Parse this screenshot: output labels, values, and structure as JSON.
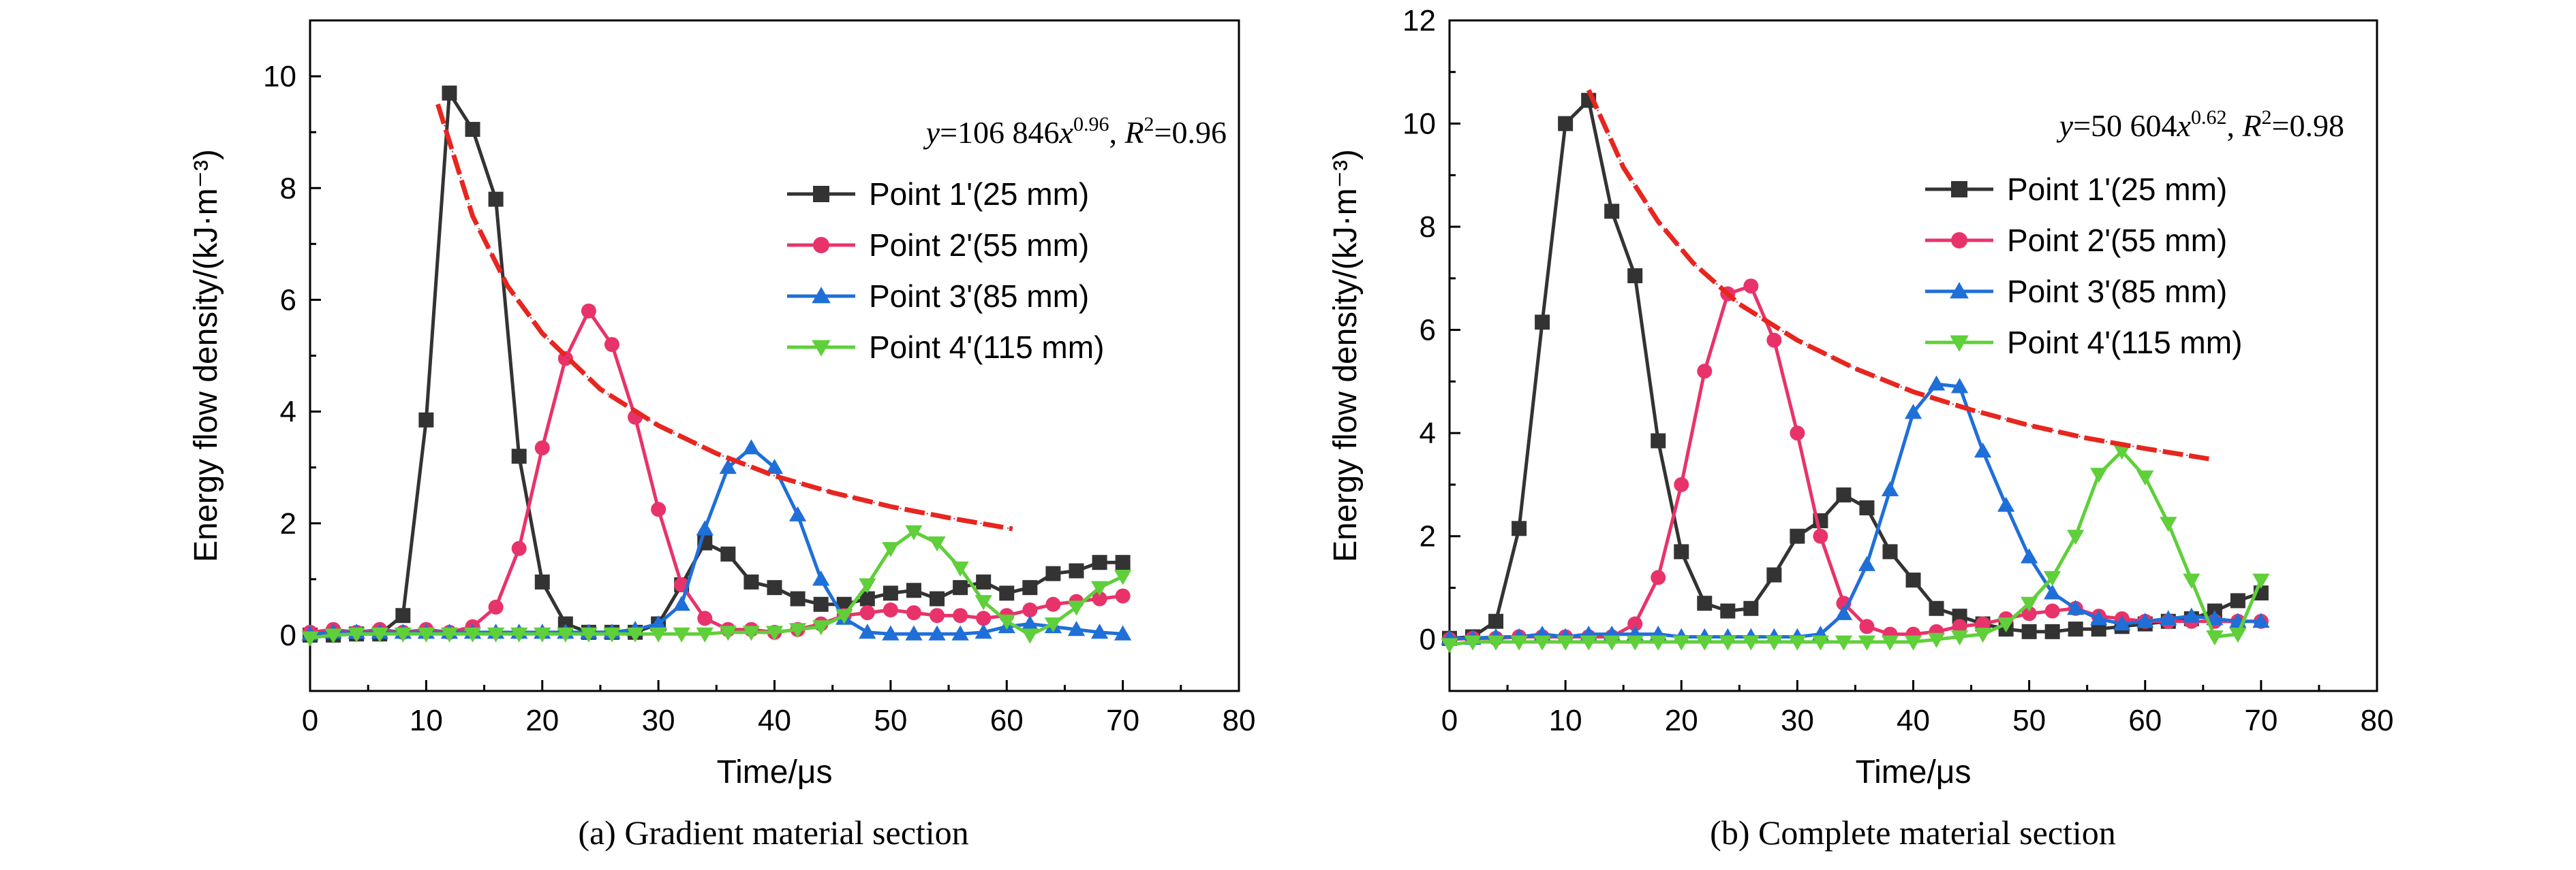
{
  "chart_data": [
    {
      "type": "line",
      "caption": "(a) Gradient material section",
      "xlabel": "Time/μs",
      "ylabel": "Energy flow density/(kJ·m⁻³)",
      "xlim": [
        0,
        80
      ],
      "ylim": [
        -1,
        11
      ],
      "xticks": [
        0,
        10,
        20,
        30,
        40,
        50,
        60,
        70,
        80
      ],
      "yticks": [
        0,
        2,
        4,
        6,
        8,
        10
      ],
      "legend_position": "top-right",
      "fit": {
        "equation": "y=106 846x^0.96, R²=0.96",
        "label_parts": [
          "y",
          "=106 846",
          "x",
          "0.96",
          ", ",
          "R",
          "2",
          "=0.96"
        ],
        "x": [
          11,
          14,
          17,
          20,
          25,
          30,
          35,
          40,
          45,
          50,
          55,
          60.5
        ],
        "y": [
          9.5,
          7.5,
          6.25,
          5.4,
          4.4,
          3.75,
          3.25,
          2.85,
          2.55,
          2.3,
          2.1,
          1.9
        ],
        "color": "#e6261f"
      },
      "series": [
        {
          "name": "Point 1'(25 mm)",
          "color": "#333333",
          "marker": "square",
          "x": [
            0,
            2,
            4,
            6,
            8,
            10,
            12,
            14,
            16,
            18,
            20,
            22,
            24,
            26,
            28,
            30,
            32,
            34,
            36,
            38,
            40,
            42,
            44,
            46,
            48,
            50,
            52,
            54,
            56,
            58,
            60,
            62,
            64,
            66,
            68,
            70
          ],
          "y": [
            0.0,
            0.0,
            0.02,
            0.02,
            0.35,
            3.85,
            9.7,
            9.05,
            7.8,
            3.2,
            0.95,
            0.2,
            0.05,
            0.05,
            0.05,
            0.2,
            0.9,
            1.65,
            1.45,
            0.95,
            0.85,
            0.65,
            0.55,
            0.55,
            0.65,
            0.75,
            0.8,
            0.65,
            0.85,
            0.95,
            0.75,
            0.85,
            1.1,
            1.15,
            1.3,
            1.3
          ]
        },
        {
          "name": "Point 2'(55 mm)",
          "color": "#e8336a",
          "marker": "circle",
          "x": [
            0,
            2,
            4,
            6,
            8,
            10,
            12,
            14,
            16,
            18,
            20,
            22,
            24,
            26,
            28,
            30,
            32,
            34,
            36,
            38,
            40,
            42,
            44,
            46,
            48,
            50,
            52,
            54,
            56,
            58,
            60,
            62,
            64,
            66,
            68,
            70
          ],
          "y": [
            0.05,
            0.1,
            0.05,
            0.1,
            0.05,
            0.1,
            0.05,
            0.15,
            0.5,
            1.55,
            3.35,
            4.95,
            5.8,
            5.2,
            3.9,
            2.25,
            0.9,
            0.3,
            0.1,
            0.1,
            0.05,
            0.1,
            0.2,
            0.35,
            0.4,
            0.45,
            0.4,
            0.35,
            0.35,
            0.3,
            0.35,
            0.45,
            0.55,
            0.6,
            0.65,
            0.7
          ]
        },
        {
          "name": "Point 3'(85 mm)",
          "color": "#1f6fd8",
          "marker": "triangle-up",
          "x": [
            0,
            2,
            4,
            6,
            8,
            10,
            12,
            14,
            16,
            18,
            20,
            22,
            24,
            26,
            28,
            30,
            32,
            34,
            36,
            38,
            40,
            42,
            44,
            46,
            48,
            50,
            52,
            54,
            56,
            58,
            60,
            62,
            64,
            66,
            68,
            70
          ],
          "y": [
            0.02,
            0.05,
            0.05,
            0.05,
            0.05,
            0.05,
            0.05,
            0.05,
            0.05,
            0.05,
            0.05,
            0.05,
            0.05,
            0.05,
            0.1,
            0.2,
            0.55,
            1.9,
            3.0,
            3.35,
            3.0,
            2.15,
            1.0,
            0.3,
            0.05,
            0.02,
            0.02,
            0.02,
            0.02,
            0.05,
            0.15,
            0.2,
            0.15,
            0.1,
            0.05,
            0.02
          ]
        },
        {
          "name": "Point 4'(115 mm)",
          "color": "#5fcf3a",
          "marker": "triangle-down",
          "x": [
            0,
            2,
            4,
            6,
            8,
            10,
            12,
            14,
            16,
            18,
            20,
            22,
            24,
            26,
            28,
            30,
            32,
            34,
            36,
            38,
            40,
            42,
            44,
            46,
            48,
            50,
            52,
            54,
            56,
            58,
            60,
            62,
            64,
            66,
            68,
            70
          ],
          "y": [
            -0.05,
            0.0,
            0.02,
            0.02,
            0.02,
            0.02,
            0.02,
            0.02,
            0.02,
            0.02,
            0.02,
            0.02,
            0.02,
            0.02,
            0.02,
            0.02,
            0.02,
            0.02,
            0.05,
            0.05,
            0.05,
            0.1,
            0.15,
            0.35,
            0.9,
            1.55,
            1.85,
            1.65,
            1.2,
            0.6,
            0.25,
            0.0,
            0.2,
            0.5,
            0.85,
            1.05
          ]
        }
      ]
    },
    {
      "type": "line",
      "caption": "(b) Complete material section",
      "xlabel": "Time/μs",
      "ylabel": "Energy flow density/(kJ·m⁻³)",
      "xlim": [
        0,
        80
      ],
      "ylim": [
        -1,
        12
      ],
      "xticks": [
        0,
        10,
        20,
        30,
        40,
        50,
        60,
        70,
        80
      ],
      "yticks": [
        0,
        2,
        4,
        6,
        8,
        10,
        12
      ],
      "legend_position": "top-right",
      "fit": {
        "equation": "y=50 604x^0.62, R²=0.98",
        "label_parts": [
          "y",
          "=50 604",
          "x",
          "0.62",
          ", ",
          "R",
          "2",
          "=0.98"
        ],
        "x": [
          12,
          15,
          18,
          21,
          25,
          30,
          35,
          40,
          45,
          50,
          55,
          60,
          65.5
        ],
        "y": [
          10.65,
          9.15,
          8.1,
          7.3,
          6.5,
          5.8,
          5.25,
          4.8,
          4.45,
          4.15,
          3.9,
          3.7,
          3.5
        ],
        "color": "#e6261f"
      },
      "series": [
        {
          "name": "Point 1'(25 mm)",
          "color": "#333333",
          "marker": "square",
          "x": [
            0,
            2,
            4,
            6,
            8,
            10,
            12,
            14,
            16,
            18,
            20,
            22,
            24,
            26,
            28,
            30,
            32,
            34,
            36,
            38,
            40,
            42,
            44,
            46,
            48,
            50,
            52,
            54,
            56,
            58,
            60,
            62,
            64,
            66,
            68,
            70
          ],
          "y": [
            0.02,
            0.05,
            0.35,
            2.15,
            6.15,
            10.0,
            10.45,
            8.3,
            7.05,
            3.85,
            1.7,
            0.7,
            0.55,
            0.6,
            1.25,
            2.0,
            2.3,
            2.8,
            2.55,
            1.7,
            1.15,
            0.6,
            0.45,
            0.3,
            0.2,
            0.15,
            0.15,
            0.2,
            0.2,
            0.25,
            0.3,
            0.35,
            0.4,
            0.55,
            0.75,
            0.9
          ]
        },
        {
          "name": "Point 2'(55 mm)",
          "color": "#e8336a",
          "marker": "circle",
          "x": [
            0,
            2,
            4,
            6,
            8,
            10,
            12,
            14,
            16,
            18,
            20,
            22,
            24,
            26,
            28,
            30,
            32,
            34,
            36,
            38,
            40,
            42,
            44,
            46,
            48,
            50,
            52,
            54,
            56,
            58,
            60,
            62,
            64,
            66,
            68,
            70
          ],
          "y": [
            0.0,
            0.02,
            0.02,
            0.05,
            0.05,
            0.05,
            0.05,
            0.05,
            0.3,
            1.2,
            3.0,
            5.2,
            6.7,
            6.85,
            5.8,
            4.0,
            2.0,
            0.7,
            0.25,
            0.1,
            0.1,
            0.15,
            0.25,
            0.3,
            0.4,
            0.5,
            0.55,
            0.6,
            0.45,
            0.4,
            0.35,
            0.35,
            0.35,
            0.35,
            0.35,
            0.35
          ]
        },
        {
          "name": "Point 3'(85 mm)",
          "color": "#1f6fd8",
          "marker": "triangle-up",
          "x": [
            0,
            2,
            4,
            6,
            8,
            10,
            12,
            14,
            16,
            18,
            20,
            22,
            24,
            26,
            28,
            30,
            32,
            34,
            36,
            38,
            40,
            42,
            44,
            46,
            48,
            50,
            52,
            54,
            56,
            58,
            60,
            62,
            64,
            66,
            68,
            70
          ],
          "y": [
            0.02,
            0.02,
            0.05,
            0.05,
            0.1,
            0.05,
            0.1,
            0.1,
            0.1,
            0.1,
            0.05,
            0.05,
            0.05,
            0.05,
            0.05,
            0.05,
            0.1,
            0.5,
            1.45,
            2.9,
            4.4,
            4.95,
            4.9,
            3.65,
            2.6,
            1.6,
            0.9,
            0.6,
            0.4,
            0.3,
            0.35,
            0.4,
            0.45,
            0.4,
            0.35,
            0.35
          ]
        },
        {
          "name": "Point 4'(115 mm)",
          "color": "#5fcf3a",
          "marker": "triangle-down",
          "x": [
            0,
            2,
            4,
            6,
            8,
            10,
            12,
            14,
            16,
            18,
            20,
            22,
            24,
            26,
            28,
            30,
            32,
            34,
            36,
            38,
            40,
            42,
            44,
            46,
            48,
            50,
            52,
            54,
            56,
            58,
            60,
            62,
            64,
            66,
            68,
            70
          ],
          "y": [
            -0.1,
            -0.05,
            -0.05,
            -0.05,
            -0.05,
            -0.05,
            -0.05,
            -0.05,
            -0.05,
            -0.05,
            -0.05,
            -0.05,
            -0.05,
            -0.05,
            -0.05,
            -0.05,
            -0.05,
            -0.05,
            -0.05,
            -0.05,
            -0.05,
            0.0,
            0.05,
            0.1,
            0.3,
            0.7,
            1.2,
            2.0,
            3.2,
            3.65,
            3.15,
            2.25,
            1.15,
            0.05,
            0.1,
            1.15
          ]
        }
      ]
    }
  ]
}
